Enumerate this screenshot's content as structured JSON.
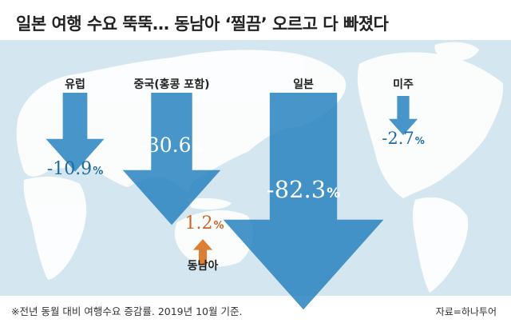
{
  "title": "일본 여행 수요 뚝뚝… 동남아 ‘찔끔’ 오르고 다 빠졌다",
  "footnote": "※전년 동월 대비 여행수요 증감률. 2019년 10월 기준.",
  "source": "자료=하나투어",
  "colors": {
    "decline": "#2e86c1",
    "increase": "#d9772b",
    "value_text_decline": "#1f6b9e",
    "value_text_increase": "#c8692a",
    "ocean": "#d4e6ef",
    "land": "#ffffff"
  },
  "chart_data": {
    "type": "bar",
    "unit": "%",
    "categories": [
      "유럽",
      "중국(홍콩 포함)",
      "일본",
      "미주",
      "동남아"
    ],
    "values": [
      -10.9,
      -30.6,
      -82.3,
      -2.7,
      1.2
    ],
    "value_labels": [
      "-10.9",
      "-30.6",
      "-82.3",
      "-2.7",
      "1.2"
    ],
    "direction": [
      "down",
      "down",
      "down",
      "down",
      "up"
    ]
  }
}
